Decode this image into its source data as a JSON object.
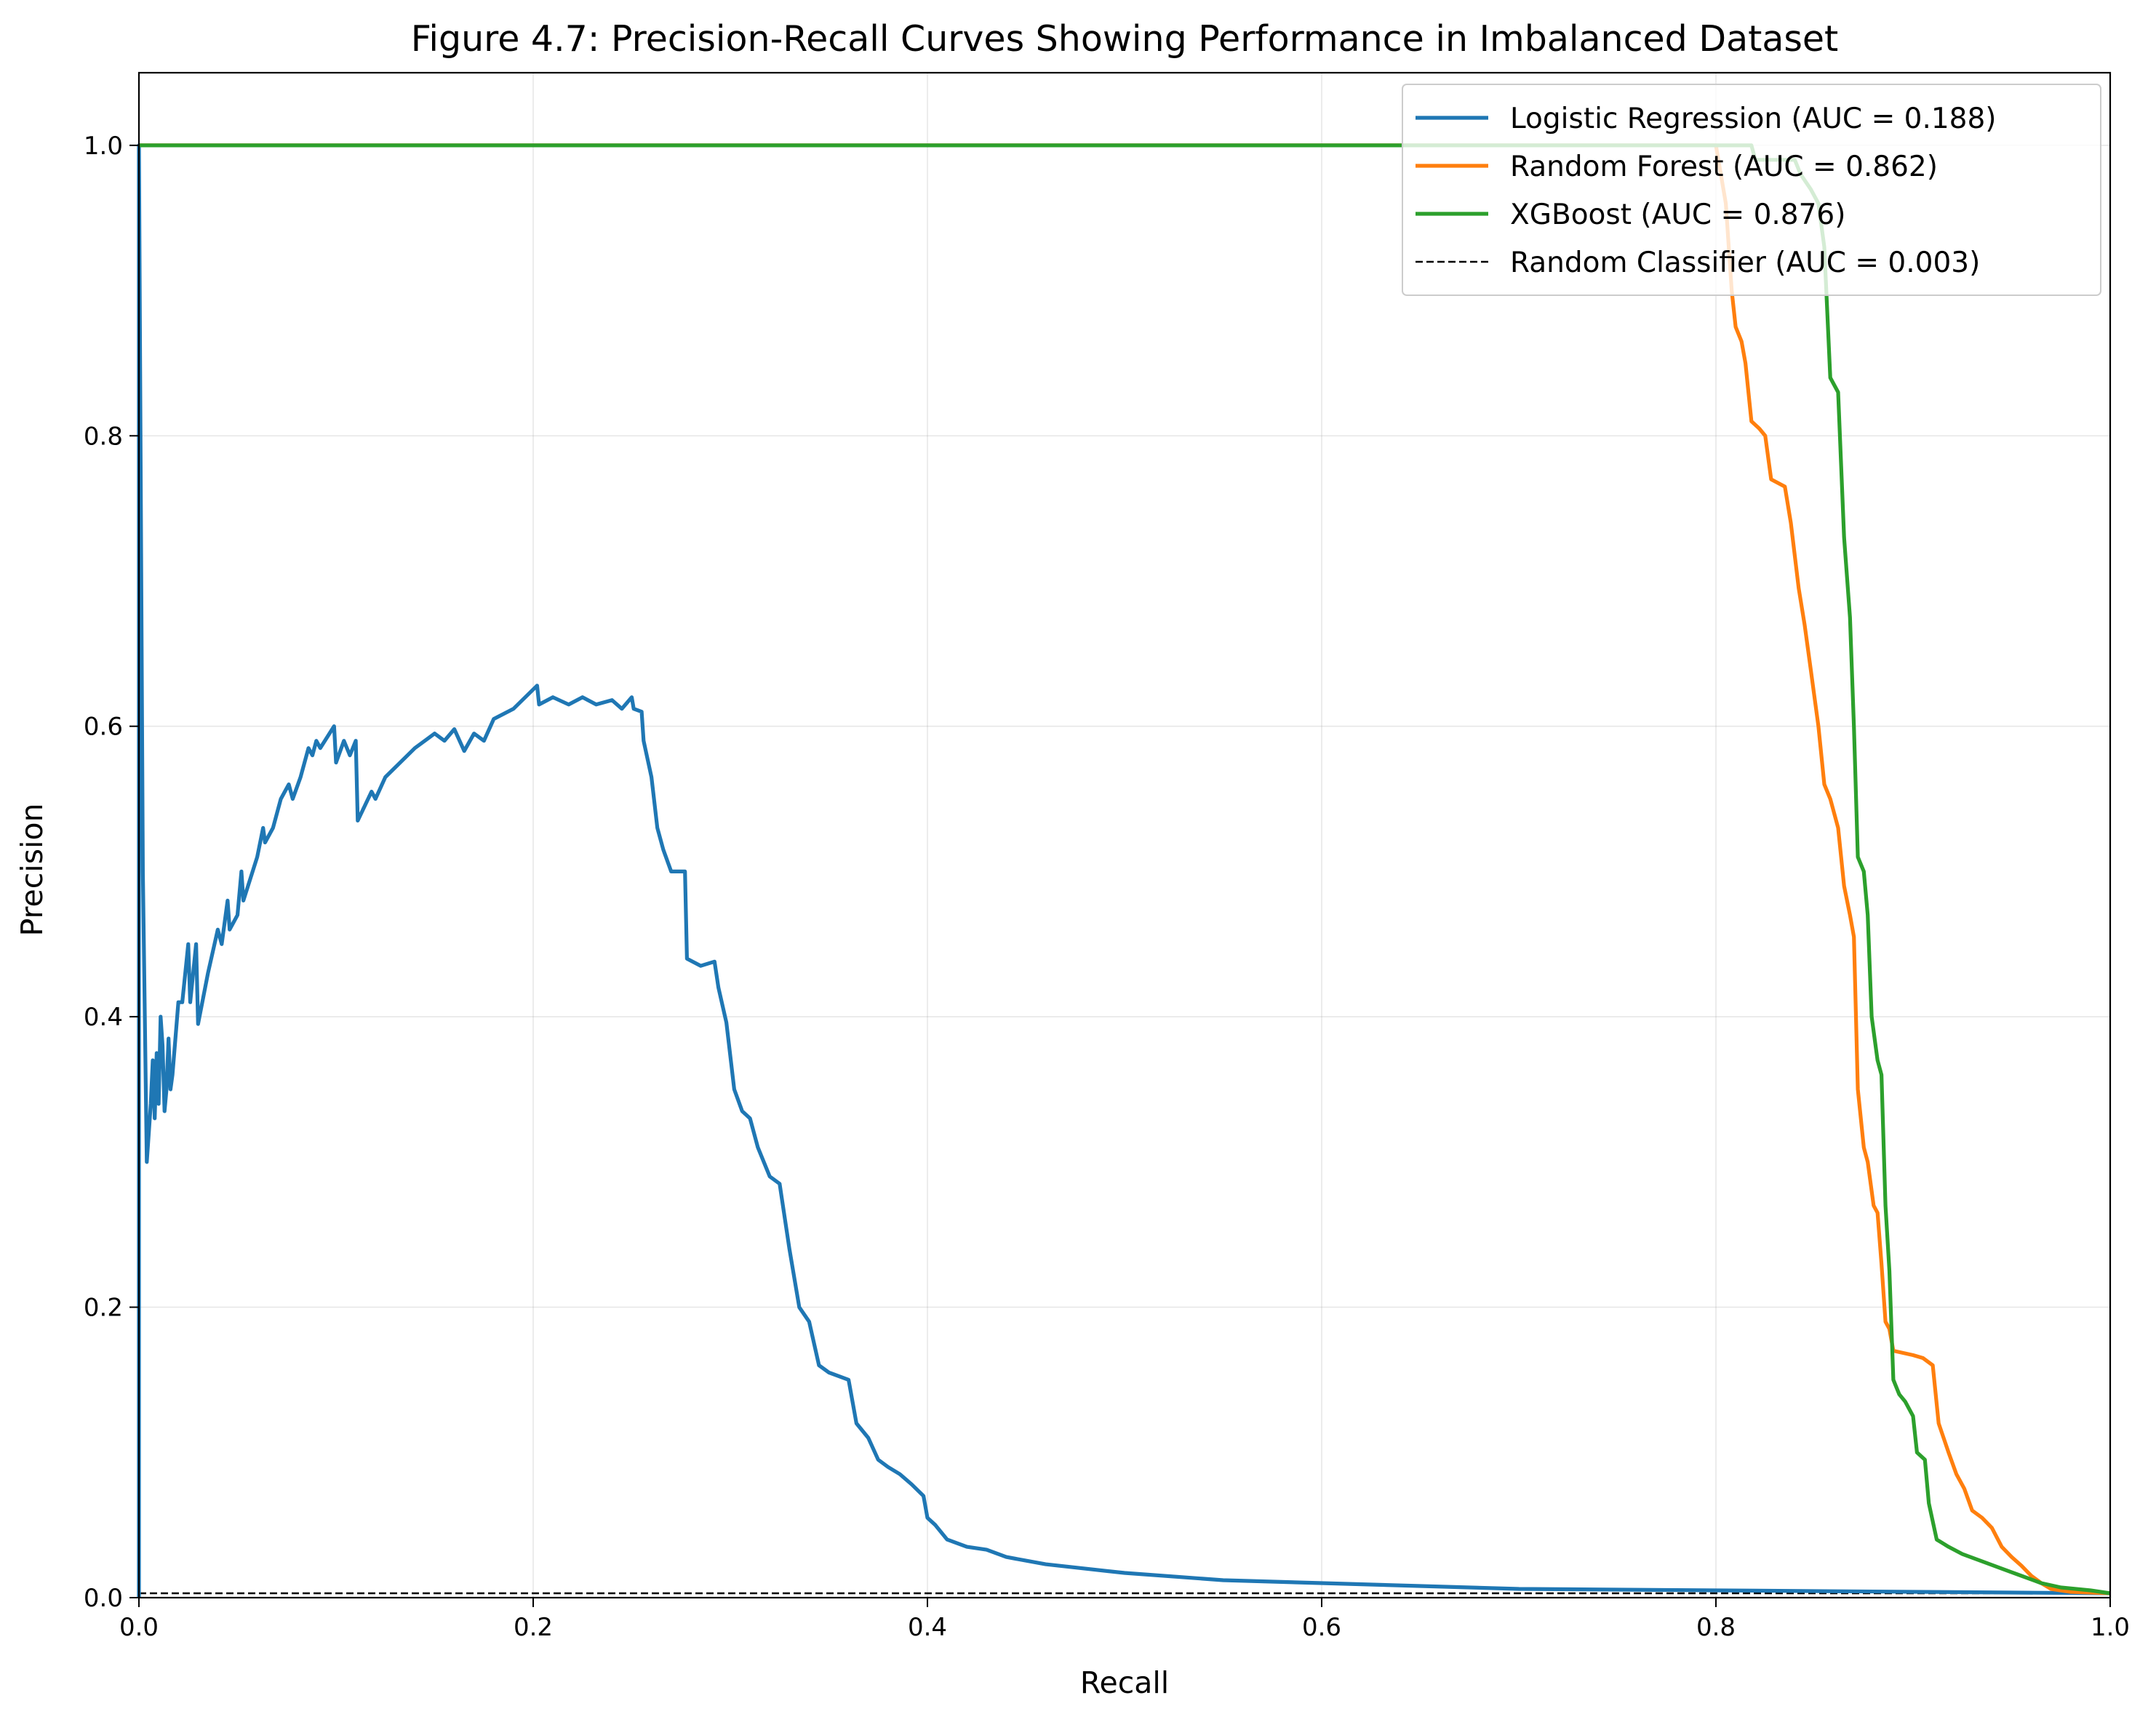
{
  "chart_data": {
    "type": "line",
    "title": "Figure 4.7: Precision-Recall Curves Showing Performance in Imbalanced Dataset",
    "xlabel": "Recall",
    "ylabel": "Precision",
    "xlim": [
      0.0,
      1.0
    ],
    "ylim": [
      0.0,
      1.05
    ],
    "x_ticks": [
      "0.0",
      "0.2",
      "0.4",
      "0.6",
      "0.8",
      "1.0"
    ],
    "y_ticks": [
      "0.0",
      "0.2",
      "0.4",
      "0.6",
      "0.8",
      "1.0"
    ],
    "grid": true,
    "legend_position": "top-right",
    "series": [
      {
        "name": "Logistic Regression (AUC = 0.188)",
        "color": "#1f77b4",
        "style": "solid",
        "points": [
          [
            0.0,
            0.0
          ],
          [
            0.0,
            1.0
          ],
          [
            0.002,
            0.5
          ],
          [
            0.004,
            0.3
          ],
          [
            0.006,
            0.34
          ],
          [
            0.007,
            0.37
          ],
          [
            0.008,
            0.33
          ],
          [
            0.009,
            0.375
          ],
          [
            0.01,
            0.34
          ],
          [
            0.011,
            0.4
          ],
          [
            0.012,
            0.38
          ],
          [
            0.013,
            0.335
          ],
          [
            0.014,
            0.35
          ],
          [
            0.015,
            0.385
          ],
          [
            0.016,
            0.35
          ],
          [
            0.017,
            0.36
          ],
          [
            0.02,
            0.41
          ],
          [
            0.022,
            0.41
          ],
          [
            0.025,
            0.45
          ],
          [
            0.026,
            0.41
          ],
          [
            0.029,
            0.45
          ],
          [
            0.03,
            0.395
          ],
          [
            0.035,
            0.43
          ],
          [
            0.04,
            0.46
          ],
          [
            0.042,
            0.45
          ],
          [
            0.045,
            0.48
          ],
          [
            0.046,
            0.46
          ],
          [
            0.05,
            0.47
          ],
          [
            0.052,
            0.5
          ],
          [
            0.053,
            0.48
          ],
          [
            0.06,
            0.51
          ],
          [
            0.063,
            0.53
          ],
          [
            0.064,
            0.52
          ],
          [
            0.068,
            0.53
          ],
          [
            0.072,
            0.55
          ],
          [
            0.076,
            0.56
          ],
          [
            0.078,
            0.55
          ],
          [
            0.082,
            0.565
          ],
          [
            0.086,
            0.585
          ],
          [
            0.088,
            0.58
          ],
          [
            0.09,
            0.59
          ],
          [
            0.092,
            0.585
          ],
          [
            0.099,
            0.6
          ],
          [
            0.1,
            0.575
          ],
          [
            0.104,
            0.59
          ],
          [
            0.107,
            0.58
          ],
          [
            0.11,
            0.59
          ],
          [
            0.111,
            0.535
          ],
          [
            0.118,
            0.555
          ],
          [
            0.12,
            0.55
          ],
          [
            0.125,
            0.565
          ],
          [
            0.14,
            0.585
          ],
          [
            0.145,
            0.59
          ],
          [
            0.15,
            0.595
          ],
          [
            0.155,
            0.59
          ],
          [
            0.16,
            0.598
          ],
          [
            0.165,
            0.583
          ],
          [
            0.17,
            0.595
          ],
          [
            0.175,
            0.59
          ],
          [
            0.18,
            0.605
          ],
          [
            0.19,
            0.612
          ],
          [
            0.202,
            0.628
          ],
          [
            0.203,
            0.615
          ],
          [
            0.21,
            0.62
          ],
          [
            0.218,
            0.615
          ],
          [
            0.225,
            0.62
          ],
          [
            0.232,
            0.615
          ],
          [
            0.24,
            0.618
          ],
          [
            0.245,
            0.612
          ],
          [
            0.25,
            0.62
          ],
          [
            0.251,
            0.612
          ],
          [
            0.255,
            0.61
          ],
          [
            0.256,
            0.59
          ],
          [
            0.26,
            0.565
          ],
          [
            0.263,
            0.53
          ],
          [
            0.266,
            0.515
          ],
          [
            0.27,
            0.5
          ],
          [
            0.277,
            0.5
          ],
          [
            0.278,
            0.44
          ],
          [
            0.285,
            0.435
          ],
          [
            0.292,
            0.438
          ],
          [
            0.294,
            0.42
          ],
          [
            0.298,
            0.396
          ],
          [
            0.302,
            0.35
          ],
          [
            0.306,
            0.335
          ],
          [
            0.31,
            0.33
          ],
          [
            0.314,
            0.31
          ],
          [
            0.32,
            0.29
          ],
          [
            0.325,
            0.285
          ],
          [
            0.33,
            0.24
          ],
          [
            0.335,
            0.2
          ],
          [
            0.34,
            0.19
          ],
          [
            0.345,
            0.16
          ],
          [
            0.35,
            0.155
          ],
          [
            0.36,
            0.15
          ],
          [
            0.364,
            0.12
          ],
          [
            0.37,
            0.11
          ],
          [
            0.375,
            0.095
          ],
          [
            0.38,
            0.09
          ],
          [
            0.386,
            0.085
          ],
          [
            0.392,
            0.078
          ],
          [
            0.398,
            0.07
          ],
          [
            0.4,
            0.055
          ],
          [
            0.404,
            0.05
          ],
          [
            0.41,
            0.04
          ],
          [
            0.42,
            0.035
          ],
          [
            0.43,
            0.033
          ],
          [
            0.44,
            0.028
          ],
          [
            0.46,
            0.023
          ],
          [
            0.48,
            0.02
          ],
          [
            0.5,
            0.017
          ],
          [
            0.55,
            0.012
          ],
          [
            0.6,
            0.01
          ],
          [
            0.65,
            0.008
          ],
          [
            0.7,
            0.006
          ],
          [
            0.8,
            0.005
          ],
          [
            0.9,
            0.004
          ],
          [
            0.95,
            0.0035
          ],
          [
            1.0,
            0.003
          ]
        ]
      },
      {
        "name": "Random Forest (AUC = 0.862)",
        "color": "#ff7f0e",
        "style": "solid",
        "points": [
          [
            0.0,
            1.0
          ],
          [
            0.8,
            1.0
          ],
          [
            0.805,
            0.96
          ],
          [
            0.808,
            0.9
          ],
          [
            0.81,
            0.875
          ],
          [
            0.813,
            0.865
          ],
          [
            0.815,
            0.85
          ],
          [
            0.818,
            0.81
          ],
          [
            0.822,
            0.805
          ],
          [
            0.825,
            0.8
          ],
          [
            0.828,
            0.77
          ],
          [
            0.835,
            0.765
          ],
          [
            0.838,
            0.74
          ],
          [
            0.842,
            0.695
          ],
          [
            0.845,
            0.67
          ],
          [
            0.848,
            0.64
          ],
          [
            0.852,
            0.6
          ],
          [
            0.855,
            0.56
          ],
          [
            0.858,
            0.55
          ],
          [
            0.86,
            0.54
          ],
          [
            0.862,
            0.53
          ],
          [
            0.865,
            0.49
          ],
          [
            0.868,
            0.47
          ],
          [
            0.87,
            0.455
          ],
          [
            0.872,
            0.35
          ],
          [
            0.875,
            0.31
          ],
          [
            0.877,
            0.3
          ],
          [
            0.88,
            0.27
          ],
          [
            0.882,
            0.265
          ],
          [
            0.884,
            0.23
          ],
          [
            0.886,
            0.19
          ],
          [
            0.888,
            0.185
          ],
          [
            0.89,
            0.17
          ],
          [
            0.9,
            0.167
          ],
          [
            0.905,
            0.165
          ],
          [
            0.91,
            0.16
          ],
          [
            0.913,
            0.12
          ],
          [
            0.918,
            0.1
          ],
          [
            0.922,
            0.085
          ],
          [
            0.926,
            0.075
          ],
          [
            0.93,
            0.06
          ],
          [
            0.935,
            0.055
          ],
          [
            0.94,
            0.048
          ],
          [
            0.945,
            0.035
          ],
          [
            0.95,
            0.028
          ],
          [
            0.955,
            0.022
          ],
          [
            0.96,
            0.015
          ],
          [
            0.965,
            0.01
          ],
          [
            0.97,
            0.006
          ],
          [
            0.98,
            0.004
          ],
          [
            1.0,
            0.003
          ]
        ]
      },
      {
        "name": "XGBoost (AUC = 0.876)",
        "color": "#2ca02c",
        "style": "solid",
        "points": [
          [
            0.0,
            1.0
          ],
          [
            0.818,
            1.0
          ],
          [
            0.82,
            0.99
          ],
          [
            0.84,
            0.99
          ],
          [
            0.843,
            0.98
          ],
          [
            0.848,
            0.97
          ],
          [
            0.852,
            0.96
          ],
          [
            0.855,
            0.93
          ],
          [
            0.858,
            0.84
          ],
          [
            0.862,
            0.83
          ],
          [
            0.865,
            0.73
          ],
          [
            0.868,
            0.675
          ],
          [
            0.87,
            0.6
          ],
          [
            0.872,
            0.51
          ],
          [
            0.875,
            0.5
          ],
          [
            0.877,
            0.47
          ],
          [
            0.879,
            0.4
          ],
          [
            0.882,
            0.37
          ],
          [
            0.884,
            0.36
          ],
          [
            0.886,
            0.27
          ],
          [
            0.888,
            0.225
          ],
          [
            0.89,
            0.15
          ],
          [
            0.893,
            0.14
          ],
          [
            0.896,
            0.135
          ],
          [
            0.9,
            0.125
          ],
          [
            0.902,
            0.1
          ],
          [
            0.906,
            0.095
          ],
          [
            0.908,
            0.065
          ],
          [
            0.912,
            0.04
          ],
          [
            0.918,
            0.035
          ],
          [
            0.925,
            0.03
          ],
          [
            0.935,
            0.025
          ],
          [
            0.945,
            0.02
          ],
          [
            0.955,
            0.015
          ],
          [
            0.965,
            0.01
          ],
          [
            0.975,
            0.007
          ],
          [
            0.99,
            0.005
          ],
          [
            1.0,
            0.003
          ]
        ]
      },
      {
        "name": "Random Classifier (AUC = 0.003)",
        "color": "#000000",
        "style": "dashed",
        "points": [
          [
            0.0,
            0.003
          ],
          [
            1.0,
            0.003
          ]
        ]
      }
    ]
  }
}
